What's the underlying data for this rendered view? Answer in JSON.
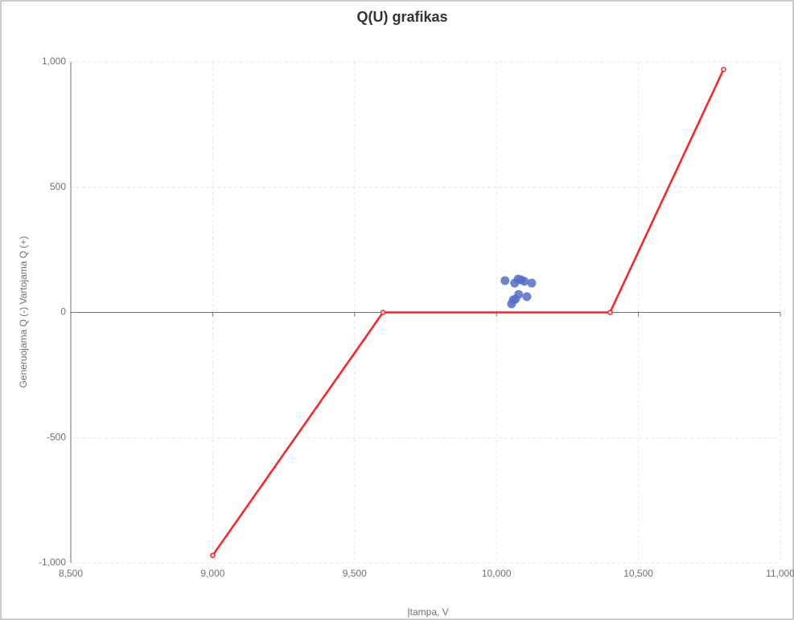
{
  "chart_data": {
    "type": "line",
    "title": "Q(U) grafikas",
    "x_label": "Įtampa, V",
    "y_label": "Generuojama Q (-) Vartojama Q (+)",
    "xlim": [
      8500,
      11000
    ],
    "xticks": [
      {
        "value": 8500,
        "label": "8,500"
      },
      {
        "value": 9000,
        "label": "9,000"
      },
      {
        "value": 9500,
        "label": "9,500"
      },
      {
        "value": 10000,
        "label": "10,000"
      },
      {
        "value": 10500,
        "label": "10,500"
      },
      {
        "value": 11000,
        "label": "11,000"
      }
    ],
    "ylim": [
      -1000,
      1000
    ],
    "yticks": [
      {
        "value": -1000,
        "label": "-1,000"
      },
      -500,
      0,
      500,
      {
        "value": 1000,
        "label": "1,000"
      }
    ],
    "grid": true,
    "series": [
      {
        "type": "line",
        "color": "#ff2020",
        "x": [
          9000,
          9600,
          10400,
          10800
        ],
        "values": [
          -970,
          0,
          0,
          970
        ]
      },
      {
        "type": "scatter",
        "color": "#5470c6",
        "x": [
          10030,
          10064,
          10076,
          10087,
          10098,
          10124,
          10078,
          10107,
          10059,
          10053,
          10067
        ],
        "values": [
          127,
          117,
          133,
          130,
          124,
          117,
          72,
          63,
          50,
          34,
          53
        ]
      }
    ]
  }
}
